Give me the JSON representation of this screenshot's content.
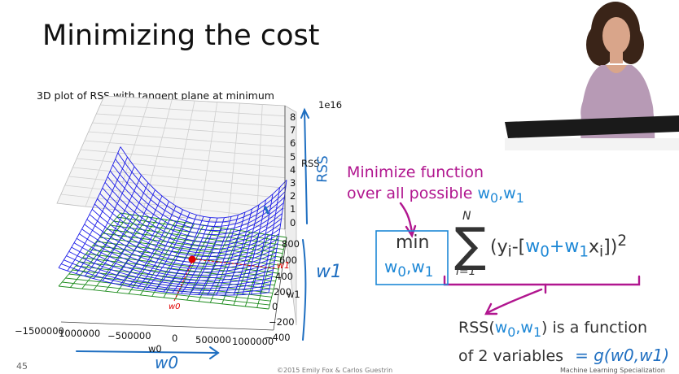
{
  "slide": {
    "title": "Minimizing the cost",
    "page_number": "45",
    "copyright": "©2015 Emily Fox & Carlos Guestrin",
    "course": "Machine Learning Specialization"
  },
  "plot": {
    "title": "3D plot of RSS with tangent plane at minimum",
    "rss_axis_label": "RSS",
    "rss_exponent": "1e16",
    "rss_ticks": [
      "8",
      "7",
      "6",
      "5",
      "4",
      "3",
      "2",
      "1",
      "0"
    ],
    "w1_axis_label": "w1",
    "w1_ticks": [
      "800",
      "600",
      "400",
      "200",
      "0",
      "−200",
      "−400"
    ],
    "w0_axis_label": "w0",
    "w0_ticks": [
      "−1500000",
      "1000000",
      "−500000",
      "0",
      "500000",
      "1000000"
    ]
  },
  "annotations": {
    "min_note_line1": "Minimize function",
    "min_note_line2": "over all possible",
    "min_note_vars": "w0,w1",
    "rss_note_line1_pre": "RSS(",
    "rss_note_vars": "w0,w1",
    "rss_note_line1_post": ") is a function",
    "rss_note_line2": "of 2 variables",
    "handwritten_g": "= g(w0,w1)",
    "handwritten_rss": "RSS",
    "handwritten_w1": "w1",
    "handwritten_w0": "w0",
    "red_w1": "w1",
    "red_w0": "w0"
  },
  "formula": {
    "min_label": "min",
    "min_sub": "w0,w1",
    "sum_top": "N",
    "sum_bottom": "i=1",
    "expression": "(yi-[w0+w1xi])2"
  },
  "colors": {
    "surface": "#1c1ce8",
    "plane": "#1a8a1a",
    "pen_blue": "#1f6fc1",
    "magenta": "#b1168f",
    "formula_blue": "#1e88d6"
  }
}
